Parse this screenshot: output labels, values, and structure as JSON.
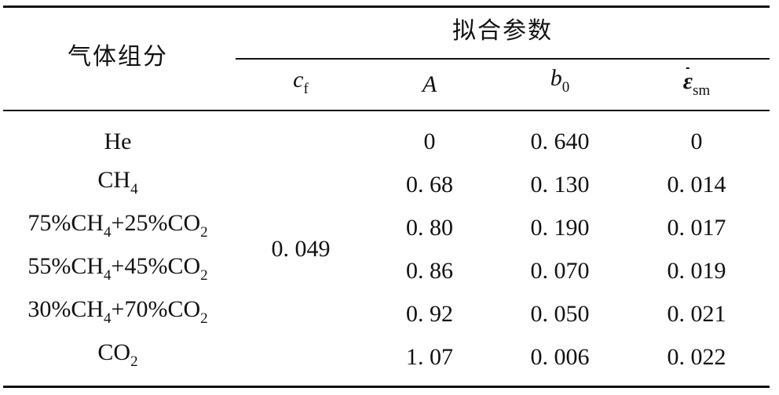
{
  "table": {
    "header": {
      "component": "气体组分",
      "group": "拟合参数",
      "cols": [
        {
          "main": "c",
          "sub": "f"
        },
        {
          "main": "A",
          "sub": ""
        },
        {
          "main": "b",
          "sub": "0"
        },
        {
          "main": "ε",
          "sub": "sm"
        }
      ]
    },
    "cf_value": "0. 049",
    "rows": [
      {
        "name": [
          {
            "t": "He"
          }
        ],
        "A": "0",
        "b0": "0. 640",
        "eps": "0"
      },
      {
        "name": [
          {
            "t": "CH"
          },
          {
            "s": "4"
          }
        ],
        "A": "0. 68",
        "b0": "0. 130",
        "eps": "0. 014"
      },
      {
        "name": [
          {
            "t": "75%CH"
          },
          {
            "s": "4"
          },
          {
            "t": "+25%CO"
          },
          {
            "s": "2"
          }
        ],
        "A": "0. 80",
        "b0": "0. 190",
        "eps": "0. 017"
      },
      {
        "name": [
          {
            "t": "55%CH"
          },
          {
            "s": "4"
          },
          {
            "t": "+45%CO"
          },
          {
            "s": "2"
          }
        ],
        "A": "0. 86",
        "b0": "0. 070",
        "eps": "0. 019"
      },
      {
        "name": [
          {
            "t": "30%CH"
          },
          {
            "s": "4"
          },
          {
            "t": "+70%CO"
          },
          {
            "s": "2"
          }
        ],
        "A": "0. 92",
        "b0": "0. 050",
        "eps": "0. 021"
      },
      {
        "name": [
          {
            "t": "CO"
          },
          {
            "s": "2"
          }
        ],
        "A": "1. 07",
        "b0": "0. 006",
        "eps": "0. 022"
      }
    ]
  }
}
